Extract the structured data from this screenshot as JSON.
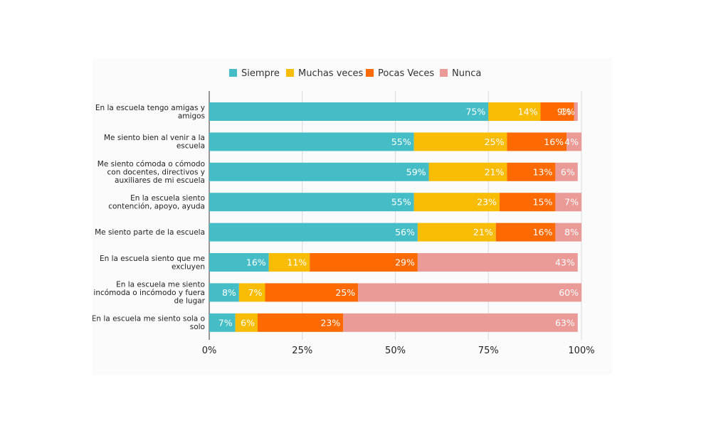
{
  "chart_data": {
    "type": "bar",
    "orientation": "horizontal",
    "stacked": true,
    "title": "",
    "xlabel": "",
    "ylabel": "",
    "xlim": [
      0,
      100
    ],
    "x_ticks": [
      "0%",
      "25%",
      "50%",
      "75%",
      "100%"
    ],
    "grid": true,
    "legend_position": "top",
    "categories": [
      [
        "En la escuela tengo amigas y",
        "amigos"
      ],
      [
        "Me siento bien al venir a la",
        "escuela"
      ],
      [
        "Me siento cómoda o cómodo",
        "con docentes, directivos y",
        "auxiliares de mi escuela"
      ],
      [
        "En la escuela siento",
        "contención, apoyo, ayuda"
      ],
      [
        "Me siento parte de la escuela"
      ],
      [
        "En la escuela siento que me",
        "excluyen"
      ],
      [
        "En la escuela me siento",
        "incómoda o incómodo y fuera",
        "de lugar"
      ],
      [
        "En la escuela me siento sola o",
        "solo"
      ]
    ],
    "series": [
      {
        "name": "Siempre",
        "color": "#45bdc6",
        "values": [
          75,
          55,
          59,
          55,
          56,
          16,
          8,
          7
        ]
      },
      {
        "name": "Muchas veces",
        "color": "#f8bc05",
        "values": [
          14,
          25,
          21,
          23,
          21,
          11,
          7,
          6
        ]
      },
      {
        "name": "Pocas Veces",
        "color": "#fd6a02",
        "values": [
          9,
          16,
          13,
          15,
          16,
          29,
          25,
          23
        ]
      },
      {
        "name": "Nunca",
        "color": "#ea9a97",
        "values": [
          1,
          4,
          6,
          7,
          8,
          43,
          60,
          63
        ]
      }
    ]
  }
}
